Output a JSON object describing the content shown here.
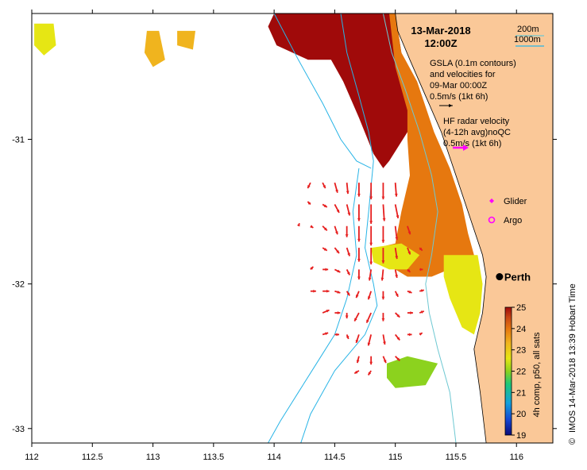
{
  "chart_data": {
    "type": "heatmap",
    "title_date": "13-Mar-2018",
    "title_time": "12:00Z",
    "xlim": [
      112,
      116.3
    ],
    "ylim": [
      -33.1,
      -30.13
    ],
    "x_ticks": [
      {
        "v": 112,
        "label": "112"
      },
      {
        "v": 112.5,
        "label": "112.5"
      },
      {
        "v": 113,
        "label": "113"
      },
      {
        "v": 113.5,
        "label": "113.5"
      },
      {
        "v": 114,
        "label": "114"
      },
      {
        "v": 114.5,
        "label": "114.5"
      },
      {
        "v": 115,
        "label": "115"
      },
      {
        "v": 115.5,
        "label": "115.5"
      },
      {
        "v": 116,
        "label": "116"
      }
    ],
    "y_ticks": [
      {
        "v": -31,
        "label": "-31"
      },
      {
        "v": -32,
        "label": "-32"
      },
      {
        "v": -33,
        "label": "-33"
      }
    ],
    "colorbar": {
      "label": "4h comp, p50, all sats",
      "range": [
        19,
        25
      ],
      "ticks": [
        "19",
        "20",
        "21",
        "22",
        "23",
        "24",
        "25"
      ]
    },
    "legend": {
      "depth_200": "200m",
      "depth_1000": "1000m",
      "gsla_1": "GSLA (0.1m contours)",
      "gsla_2": "and velocities for",
      "gsla_3": "09-Mar 00:00Z",
      "gsla_scale": "0.5m/s (1kt 6h)",
      "hf_1": "HF radar velocity",
      "hf_2": "(4-12h avg)noQC",
      "hf_scale": "0.5m/s (1kt 6h)",
      "glider": "Glider",
      "argo": "Argo"
    },
    "city": {
      "name": "Perth",
      "lon": 115.86,
      "lat": -31.95
    },
    "credit": "IMOS 14-Mar-2018 13:39 Hobart Time",
    "copyright": "©",
    "colors": {
      "land": "#fac898",
      "depth_200": "#6ec8d2",
      "depth_1000": "#28b4e6",
      "hf_vector": "#e61e1e",
      "hf_legend": "#ff00ff",
      "glider": "#ff00ff",
      "argo": "#ff00ff",
      "colormap": [
        "#0a0a78",
        "#1446d2",
        "#14a0dc",
        "#1ec878",
        "#8cd21e",
        "#e6e614",
        "#f0b41e",
        "#e6780f",
        "#c84614",
        "#a00a0a"
      ]
    },
    "sst_regions": [
      {
        "name": "warm-core",
        "temp": 25,
        "poly": [
          [
            114.7,
            -30.13
          ],
          [
            115.0,
            -30.13
          ],
          [
            115.05,
            -30.4
          ],
          [
            115.1,
            -30.6
          ],
          [
            115.25,
            -30.85
          ],
          [
            115.1,
            -30.95
          ],
          [
            114.95,
            -31.15
          ],
          [
            114.9,
            -31.2
          ],
          [
            114.82,
            -31.1
          ],
          [
            114.7,
            -30.85
          ],
          [
            114.57,
            -30.6
          ],
          [
            114.47,
            -30.45
          ],
          [
            114.28,
            -30.45
          ],
          [
            114.02,
            -30.35
          ],
          [
            113.95,
            -30.22
          ],
          [
            114.0,
            -30.13
          ]
        ]
      },
      {
        "name": "shelf-orange",
        "temp": 23.5,
        "poly": [
          [
            114.95,
            -30.13
          ],
          [
            115.0,
            -30.13
          ],
          [
            115.05,
            -30.4
          ],
          [
            115.18,
            -30.6
          ],
          [
            115.32,
            -30.95
          ],
          [
            115.45,
            -31.2
          ],
          [
            115.55,
            -31.45
          ],
          [
            115.6,
            -31.65
          ],
          [
            115.65,
            -31.8
          ],
          [
            115.5,
            -31.88
          ],
          [
            115.3,
            -31.95
          ],
          [
            115.1,
            -31.95
          ],
          [
            114.9,
            -31.85
          ],
          [
            114.85,
            -31.75
          ],
          [
            115.0,
            -31.72
          ],
          [
            115.05,
            -31.5
          ],
          [
            115.12,
            -31.25
          ],
          [
            115.1,
            -31.0
          ],
          [
            115.1,
            -30.8
          ],
          [
            115.0,
            -30.5
          ]
        ]
      },
      {
        "name": "shelf-yellow-green",
        "temp": 22,
        "poly": [
          [
            115.4,
            -31.8
          ],
          [
            115.68,
            -31.8
          ],
          [
            115.72,
            -32.0
          ],
          [
            115.7,
            -32.2
          ],
          [
            115.65,
            -32.35
          ],
          [
            115.55,
            -32.3
          ],
          [
            115.45,
            -32.1
          ],
          [
            115.4,
            -31.95
          ]
        ]
      },
      {
        "name": "mid-shelf-yellow",
        "temp": 22.5,
        "poly": [
          [
            114.8,
            -31.75
          ],
          [
            115.05,
            -31.72
          ],
          [
            115.2,
            -31.8
          ],
          [
            115.1,
            -31.9
          ],
          [
            114.95,
            -31.9
          ],
          [
            114.82,
            -31.85
          ]
        ]
      },
      {
        "name": "offshore-green",
        "temp": 21.8,
        "poly": [
          [
            114.93,
            -32.55
          ],
          [
            115.1,
            -32.5
          ],
          [
            115.35,
            -32.55
          ],
          [
            115.25,
            -32.7
          ],
          [
            115.0,
            -32.72
          ],
          [
            114.93,
            -32.65
          ]
        ]
      },
      {
        "name": "nw-yellow",
        "temp": 22.5,
        "poly": [
          [
            112.02,
            -30.2
          ],
          [
            112.18,
            -30.2
          ],
          [
            112.2,
            -30.35
          ],
          [
            112.1,
            -30.42
          ],
          [
            112.02,
            -30.35
          ]
        ]
      },
      {
        "name": "north-yellow",
        "temp": 23,
        "poly": [
          [
            112.95,
            -30.25
          ],
          [
            113.05,
            -30.25
          ],
          [
            113.1,
            -30.45
          ],
          [
            113.0,
            -30.5
          ],
          [
            112.93,
            -30.4
          ]
        ]
      },
      {
        "name": "north-yellow-2",
        "temp": 22.8,
        "poly": [
          [
            113.2,
            -30.25
          ],
          [
            113.35,
            -30.25
          ],
          [
            113.33,
            -30.38
          ],
          [
            113.2,
            -30.35
          ]
        ]
      }
    ],
    "land_poly": [
      [
        115.0,
        -30.13
      ],
      [
        116.3,
        -30.13
      ],
      [
        116.3,
        -33.1
      ],
      [
        115.75,
        -33.1
      ],
      [
        115.7,
        -32.75
      ],
      [
        115.65,
        -32.45
      ],
      [
        115.72,
        -32.2
      ],
      [
        115.75,
        -31.95
      ],
      [
        115.72,
        -31.8
      ],
      [
        115.62,
        -31.55
      ],
      [
        115.5,
        -31.25
      ],
      [
        115.38,
        -30.95
      ],
      [
        115.25,
        -30.7
      ],
      [
        115.12,
        -30.45
      ],
      [
        115.02,
        -30.25
      ]
    ],
    "depth_200_line": [
      [
        114.9,
        -30.13
      ],
      [
        114.97,
        -30.4
      ],
      [
        115.08,
        -30.65
      ],
      [
        115.2,
        -30.95
      ],
      [
        115.3,
        -31.25
      ],
      [
        115.35,
        -31.5
      ],
      [
        115.3,
        -31.8
      ],
      [
        115.25,
        -32.0
      ],
      [
        115.28,
        -32.2
      ],
      [
        115.35,
        -32.45
      ],
      [
        115.45,
        -32.75
      ],
      [
        115.5,
        -33.1
      ]
    ],
    "depth_1000_lines": [
      [
        [
          114.55,
          -30.13
        ],
        [
          114.6,
          -30.4
        ],
        [
          114.7,
          -30.7
        ],
        [
          114.78,
          -30.95
        ],
        [
          114.82,
          -31.15
        ],
        [
          114.78,
          -31.5
        ],
        [
          114.75,
          -31.75
        ],
        [
          114.82,
          -32.0
        ],
        [
          114.85,
          -32.15
        ],
        [
          114.75,
          -32.35
        ],
        [
          114.5,
          -32.6
        ],
        [
          114.3,
          -32.9
        ],
        [
          114.22,
          -33.1
        ]
      ],
      [
        [
          114.0,
          -30.13
        ],
        [
          114.2,
          -30.45
        ],
        [
          114.4,
          -30.75
        ],
        [
          114.55,
          -31.0
        ],
        [
          114.68,
          -31.15
        ],
        [
          114.8,
          -31.2
        ]
      ],
      [
        [
          114.7,
          -31.2
        ],
        [
          114.65,
          -31.5
        ],
        [
          114.68,
          -31.8
        ],
        [
          114.6,
          -32.1
        ],
        [
          114.5,
          -32.35
        ],
        [
          114.35,
          -32.55
        ],
        [
          114.2,
          -32.75
        ],
        [
          114.05,
          -32.95
        ],
        [
          113.95,
          -33.1
        ]
      ]
    ],
    "hf_vectors": [
      {
        "lon": 114.3,
        "lat": -31.3,
        "u": -0.05,
        "v": -0.1
      },
      {
        "lon": 114.4,
        "lat": -31.3,
        "u": 0.05,
        "v": -0.1
      },
      {
        "lon": 114.5,
        "lat": -31.3,
        "u": 0.05,
        "v": -0.18
      },
      {
        "lon": 114.6,
        "lat": -31.3,
        "u": 0.02,
        "v": -0.2
      },
      {
        "lon": 114.7,
        "lat": -31.3,
        "u": 0.0,
        "v": -0.25
      },
      {
        "lon": 114.8,
        "lat": -31.3,
        "u": 0.0,
        "v": -0.3
      },
      {
        "lon": 114.9,
        "lat": -31.3,
        "u": 0.0,
        "v": -0.3
      },
      {
        "lon": 115.0,
        "lat": -31.3,
        "u": 0.02,
        "v": -0.25
      },
      {
        "lon": 114.3,
        "lat": -31.45,
        "u": -0.05,
        "v": 0.05
      },
      {
        "lon": 114.4,
        "lat": -31.45,
        "u": 0.08,
        "v": -0.05
      },
      {
        "lon": 114.5,
        "lat": -31.45,
        "u": 0.08,
        "v": -0.15
      },
      {
        "lon": 114.6,
        "lat": -31.45,
        "u": 0.05,
        "v": -0.2
      },
      {
        "lon": 114.7,
        "lat": -31.45,
        "u": 0.0,
        "v": -0.3
      },
      {
        "lon": 114.8,
        "lat": -31.45,
        "u": 0.0,
        "v": -0.35
      },
      {
        "lon": 114.9,
        "lat": -31.45,
        "u": 0.02,
        "v": -0.3
      },
      {
        "lon": 115.0,
        "lat": -31.45,
        "u": 0.05,
        "v": -0.25
      },
      {
        "lon": 114.2,
        "lat": -31.6,
        "u": 0.02,
        "v": 0.05
      },
      {
        "lon": 114.3,
        "lat": -31.6,
        "u": 0.05,
        "v": -0.03
      },
      {
        "lon": 114.4,
        "lat": -31.6,
        "u": 0.08,
        "v": -0.08
      },
      {
        "lon": 114.5,
        "lat": -31.6,
        "u": 0.05,
        "v": -0.15
      },
      {
        "lon": 114.6,
        "lat": -31.6,
        "u": 0.0,
        "v": -0.2
      },
      {
        "lon": 114.7,
        "lat": -31.6,
        "u": 0.0,
        "v": -0.28
      },
      {
        "lon": 114.8,
        "lat": -31.6,
        "u": 0.0,
        "v": -0.35
      },
      {
        "lon": 114.9,
        "lat": -31.6,
        "u": 0.0,
        "v": -0.3
      },
      {
        "lon": 115.0,
        "lat": -31.6,
        "u": 0.03,
        "v": -0.25
      },
      {
        "lon": 115.1,
        "lat": -31.6,
        "u": 0.05,
        "v": -0.15
      },
      {
        "lon": 114.4,
        "lat": -31.75,
        "u": 0.08,
        "v": -0.05
      },
      {
        "lon": 114.5,
        "lat": -31.75,
        "u": 0.08,
        "v": -0.1
      },
      {
        "lon": 114.6,
        "lat": -31.75,
        "u": 0.05,
        "v": -0.15
      },
      {
        "lon": 114.7,
        "lat": -31.75,
        "u": 0.0,
        "v": -0.25
      },
      {
        "lon": 114.8,
        "lat": -31.75,
        "u": 0.0,
        "v": -0.3
      },
      {
        "lon": 114.9,
        "lat": -31.75,
        "u": 0.0,
        "v": -0.28
      },
      {
        "lon": 115.0,
        "lat": -31.75,
        "u": 0.03,
        "v": -0.2
      },
      {
        "lon": 115.1,
        "lat": -31.75,
        "u": 0.05,
        "v": -0.12
      },
      {
        "lon": 115.2,
        "lat": -31.75,
        "u": 0.05,
        "v": -0.05
      },
      {
        "lon": 114.3,
        "lat": -31.9,
        "u": 0.05,
        "v": 0.05
      },
      {
        "lon": 114.4,
        "lat": -31.9,
        "u": 0.1,
        "v": 0.0
      },
      {
        "lon": 114.5,
        "lat": -31.9,
        "u": 0.1,
        "v": -0.05
      },
      {
        "lon": 114.6,
        "lat": -31.9,
        "u": 0.05,
        "v": -0.1
      },
      {
        "lon": 114.7,
        "lat": -31.9,
        "u": 0.0,
        "v": -0.18
      },
      {
        "lon": 114.8,
        "lat": -31.9,
        "u": -0.03,
        "v": -0.2
      },
      {
        "lon": 114.9,
        "lat": -31.9,
        "u": -0.02,
        "v": -0.2
      },
      {
        "lon": 115.0,
        "lat": -31.9,
        "u": 0.03,
        "v": -0.15
      },
      {
        "lon": 115.1,
        "lat": -31.9,
        "u": 0.05,
        "v": -0.05
      },
      {
        "lon": 115.2,
        "lat": -31.9,
        "u": 0.06,
        "v": 0.0
      },
      {
        "lon": 114.3,
        "lat": -32.05,
        "u": 0.1,
        "v": 0.0
      },
      {
        "lon": 114.4,
        "lat": -32.05,
        "u": 0.12,
        "v": 0.0
      },
      {
        "lon": 114.5,
        "lat": -32.05,
        "u": 0.1,
        "v": -0.03
      },
      {
        "lon": 114.6,
        "lat": -32.05,
        "u": 0.05,
        "v": -0.08
      },
      {
        "lon": 114.7,
        "lat": -32.05,
        "u": -0.05,
        "v": -0.12
      },
      {
        "lon": 114.8,
        "lat": -32.05,
        "u": -0.05,
        "v": -0.15
      },
      {
        "lon": 114.9,
        "lat": -32.05,
        "u": 0.0,
        "v": -0.15
      },
      {
        "lon": 115.0,
        "lat": -32.05,
        "u": 0.05,
        "v": -0.1
      },
      {
        "lon": 115.1,
        "lat": -32.05,
        "u": 0.08,
        "v": -0.03
      },
      {
        "lon": 115.2,
        "lat": -32.05,
        "u": 0.08,
        "v": 0.02
      },
      {
        "lon": 114.4,
        "lat": -32.2,
        "u": 0.12,
        "v": 0.05
      },
      {
        "lon": 114.5,
        "lat": -32.2,
        "u": 0.1,
        "v": 0.0
      },
      {
        "lon": 114.6,
        "lat": -32.2,
        "u": 0.0,
        "v": -0.1
      },
      {
        "lon": 114.7,
        "lat": -32.2,
        "u": -0.08,
        "v": -0.15
      },
      {
        "lon": 114.8,
        "lat": -32.2,
        "u": -0.08,
        "v": -0.18
      },
      {
        "lon": 114.9,
        "lat": -32.2,
        "u": 0.0,
        "v": -0.15
      },
      {
        "lon": 115.0,
        "lat": -32.2,
        "u": 0.08,
        "v": -0.08
      },
      {
        "lon": 115.1,
        "lat": -32.2,
        "u": 0.1,
        "v": 0.0
      },
      {
        "lon": 115.2,
        "lat": -32.2,
        "u": 0.08,
        "v": 0.03
      },
      {
        "lon": 114.4,
        "lat": -32.35,
        "u": 0.1,
        "v": 0.03
      },
      {
        "lon": 114.5,
        "lat": -32.35,
        "u": 0.08,
        "v": 0.0
      },
      {
        "lon": 114.6,
        "lat": -32.35,
        "u": 0.03,
        "v": -0.08
      },
      {
        "lon": 114.7,
        "lat": -32.35,
        "u": -0.05,
        "v": -0.15
      },
      {
        "lon": 114.8,
        "lat": -32.35,
        "u": -0.05,
        "v": -0.2
      },
      {
        "lon": 114.9,
        "lat": -32.35,
        "u": 0.03,
        "v": -0.18
      },
      {
        "lon": 115.0,
        "lat": -32.35,
        "u": 0.08,
        "v": -0.1
      },
      {
        "lon": 115.1,
        "lat": -32.35,
        "u": 0.08,
        "v": 0.0
      },
      {
        "lon": 115.2,
        "lat": -32.35,
        "u": 0.05,
        "v": 0.03
      },
      {
        "lon": 114.7,
        "lat": -32.5,
        "u": -0.03,
        "v": -0.12
      },
      {
        "lon": 114.8,
        "lat": -32.5,
        "u": 0.0,
        "v": -0.15
      },
      {
        "lon": 114.9,
        "lat": -32.5,
        "u": 0.05,
        "v": -0.12
      },
      {
        "lon": 115.0,
        "lat": -32.5,
        "u": 0.08,
        "v": -0.08
      },
      {
        "lon": 114.7,
        "lat": -32.6,
        "u": -0.08,
        "v": -0.05
      },
      {
        "lon": 114.8,
        "lat": -32.6,
        "u": -0.05,
        "v": -0.08
      }
    ]
  }
}
